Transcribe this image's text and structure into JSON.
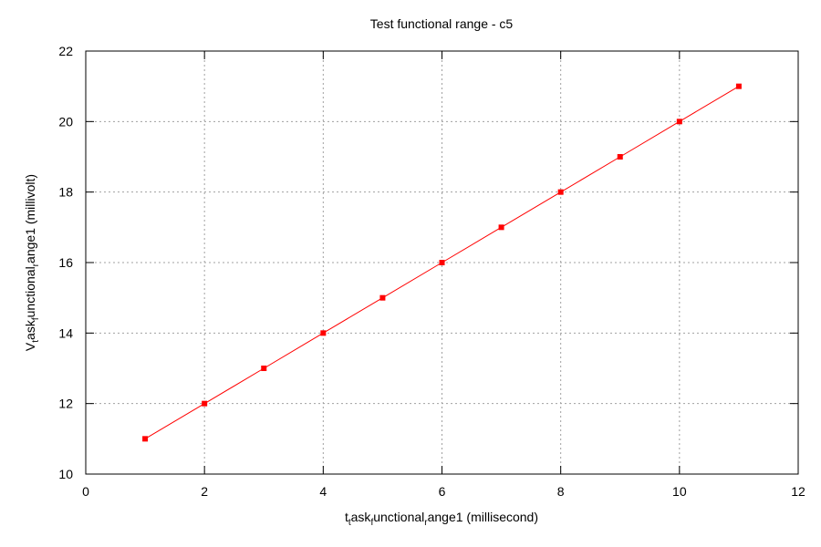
{
  "chart_data": {
    "type": "line",
    "title": "Test functional range - c5",
    "xlabel": {
      "parts": [
        {
          "text": "t",
          "sub": false
        },
        {
          "text": "t",
          "sub": true
        },
        {
          "text": "ask",
          "sub": false
        },
        {
          "text": "f",
          "sub": true
        },
        {
          "text": "unctional",
          "sub": false
        },
        {
          "text": "r",
          "sub": true
        },
        {
          "text": "ange1 (millisecond)",
          "sub": false
        }
      ]
    },
    "ylabel": {
      "parts": [
        {
          "text": "V",
          "sub": false
        },
        {
          "text": "t",
          "sub": true
        },
        {
          "text": "ask",
          "sub": false
        },
        {
          "text": "f",
          "sub": true
        },
        {
          "text": "unctional",
          "sub": false
        },
        {
          "text": "r",
          "sub": true
        },
        {
          "text": "ange1 (millivolt)",
          "sub": false
        }
      ]
    },
    "xlim": [
      0,
      12
    ],
    "ylim": [
      10,
      22
    ],
    "xticks": [
      0,
      2,
      4,
      6,
      8,
      10,
      12
    ],
    "yticks": [
      10,
      12,
      14,
      16,
      18,
      20,
      22
    ],
    "grid": true,
    "series": [
      {
        "color": "#ff0000",
        "marker": "square",
        "x": [
          1,
          2,
          3,
          4,
          5,
          6,
          7,
          8,
          9,
          10,
          11
        ],
        "y": [
          11,
          12,
          13,
          14,
          15,
          16,
          17,
          18,
          19,
          20,
          21
        ]
      }
    ]
  }
}
